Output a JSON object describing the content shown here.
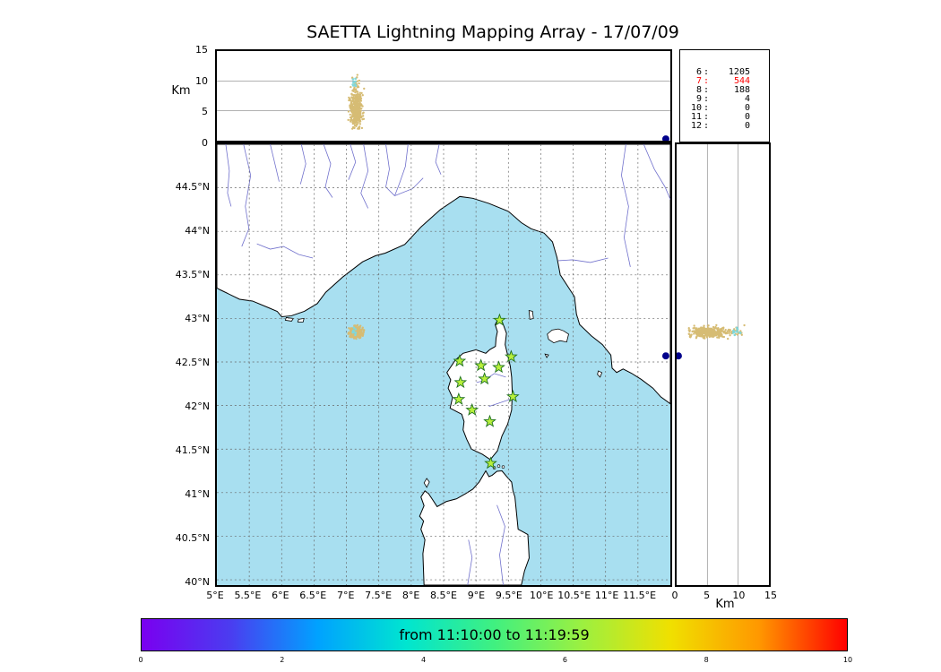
{
  "title": "SAETTA Lightning Mapping Array - 17/07/09",
  "colors": {
    "sea": "#a8dff0",
    "land": "#ffffff",
    "coast": "#000000",
    "river": "#7070cc",
    "grid_map": "#666666",
    "grid_panel": "#999999",
    "station_fill": "#b8f03c",
    "station_stroke": "#1e701e",
    "source_main": "#d6bc74",
    "source_high": "#7fd8dc",
    "outlier": "#00008b"
  },
  "top_panel": {
    "ylabel": "Km",
    "yticks": [
      {
        "v": 0,
        "label": "0"
      },
      {
        "v": 5,
        "label": "5"
      },
      {
        "v": 10,
        "label": "10"
      },
      {
        "v": 15,
        "label": "15"
      }
    ]
  },
  "stats_panel": {
    "rows": [
      {
        "level": "6",
        "count": "1205",
        "color": "#000000"
      },
      {
        "level": "7",
        "count": "544",
        "color": "#ff0000"
      },
      {
        "level": "8",
        "count": "188",
        "color": "#000000"
      },
      {
        "level": "9",
        "count": "4",
        "color": "#000000"
      },
      {
        "level": "10",
        "count": "0",
        "color": "#000000"
      },
      {
        "level": "11",
        "count": "0",
        "color": "#000000"
      },
      {
        "level": "12",
        "count": "0",
        "color": "#000000"
      }
    ]
  },
  "map_panel": {
    "lat_ticks": [
      {
        "v": 44.5,
        "label": "44.5°N"
      },
      {
        "v": 44,
        "label": "44°N"
      },
      {
        "v": 43.5,
        "label": "43.5°N"
      },
      {
        "v": 43,
        "label": "43°N"
      },
      {
        "v": 42.5,
        "label": "42.5°N"
      },
      {
        "v": 42,
        "label": "42°N"
      },
      {
        "v": 41.5,
        "label": "41.5°N"
      },
      {
        "v": 41,
        "label": "41°N"
      },
      {
        "v": 40.5,
        "label": "40.5°N"
      },
      {
        "v": 40,
        "label": "40°N"
      }
    ],
    "lon_ticks": [
      {
        "v": 5,
        "label": "5°E"
      },
      {
        "v": 5.5,
        "label": "5.5°E"
      },
      {
        "v": 6,
        "label": "6°E"
      },
      {
        "v": 6.5,
        "label": "6.5°E"
      },
      {
        "v": 7,
        "label": "7°E"
      },
      {
        "v": 7.5,
        "label": "7.5°E"
      },
      {
        "v": 8,
        "label": "8°E"
      },
      {
        "v": 8.5,
        "label": "8.5°E"
      },
      {
        "v": 9,
        "label": "9°E"
      },
      {
        "v": 9.5,
        "label": "9.5°E"
      },
      {
        "v": 10,
        "label": "10°E"
      },
      {
        "v": 10.5,
        "label": "10.5°E"
      },
      {
        "v": 11,
        "label": "11°E"
      },
      {
        "v": 11.5,
        "label": "11.5°E"
      }
    ]
  },
  "right_panel": {
    "xlabel": "Km",
    "xticks": [
      {
        "v": 0,
        "label": "0"
      },
      {
        "v": 5,
        "label": "5"
      },
      {
        "v": 10,
        "label": "10"
      },
      {
        "v": 15,
        "label": "15"
      }
    ]
  },
  "colorbar": {
    "label": "from 11:10:00 to 11:19:59",
    "ticks": [
      "0",
      "2",
      "4",
      "6",
      "8",
      "10"
    ]
  },
  "chart_data": {
    "type": "scatter",
    "title": "SAETTA Lightning Mapping Array - 17/07/09",
    "time_window_label": "from 11:10:00 to 11:19:59",
    "color_scale": {
      "range": [
        0,
        10
      ],
      "unit": "minutes",
      "colors": [
        "#7a00f0",
        "#4b3cf0",
        "#00a2ff",
        "#00e5d0",
        "#40f080",
        "#9cf040",
        "#f0e000",
        "#ff9800",
        "#ff0000"
      ]
    },
    "panels": {
      "top": {
        "y": "altitude_km",
        "ylim": [
          0,
          15
        ],
        "grid_km": [
          5,
          10
        ],
        "x": "longitude_deg_e",
        "xlim": [
          5,
          12
        ]
      },
      "map": {
        "lon_lim": [
          5,
          12
        ],
        "lat_lim": [
          39.95,
          45.0
        ],
        "grid_step_deg": 0.5
      },
      "right": {
        "x": "altitude_km",
        "xlim": [
          0,
          15
        ],
        "grid_km": [
          5,
          10
        ],
        "y": "latitude_deg_n"
      }
    },
    "source_counts_by_minute": {
      "6": 1205,
      "7": 544,
      "8": 188,
      "9": 4,
      "10": 0,
      "11": 0,
      "12": 0
    },
    "main_cluster": {
      "lon_center": 7.15,
      "lon_sigma": 0.05,
      "lat_center": 42.84,
      "lat_sigma": 0.03,
      "alt_mean_km": 5.2,
      "alt_sigma_km": 1.5,
      "alt_range_km": [
        2,
        8.5
      ],
      "display_points": 380,
      "color": "#d6bc74"
    },
    "high_cluster": {
      "lon_center": 7.12,
      "lat_center": 42.85,
      "alt_range_km": [
        8.8,
        10.4
      ],
      "display_points": 10,
      "color": "#7fd8dc"
    },
    "outlier_point": {
      "lon": 11.93,
      "lat": 42.57,
      "alt_km": 0.3,
      "color": "#00008b"
    },
    "stations_lon_lat": [
      [
        9.364,
        42.98
      ],
      [
        8.747,
        42.51
      ],
      [
        9.076,
        42.459
      ],
      [
        9.351,
        42.439
      ],
      [
        9.543,
        42.561
      ],
      [
        9.131,
        42.306
      ],
      [
        8.76,
        42.265
      ],
      [
        9.57,
        42.102
      ],
      [
        8.733,
        42.071
      ],
      [
        8.939,
        41.949
      ],
      [
        9.213,
        41.816
      ],
      [
        9.227,
        41.337
      ]
    ]
  }
}
